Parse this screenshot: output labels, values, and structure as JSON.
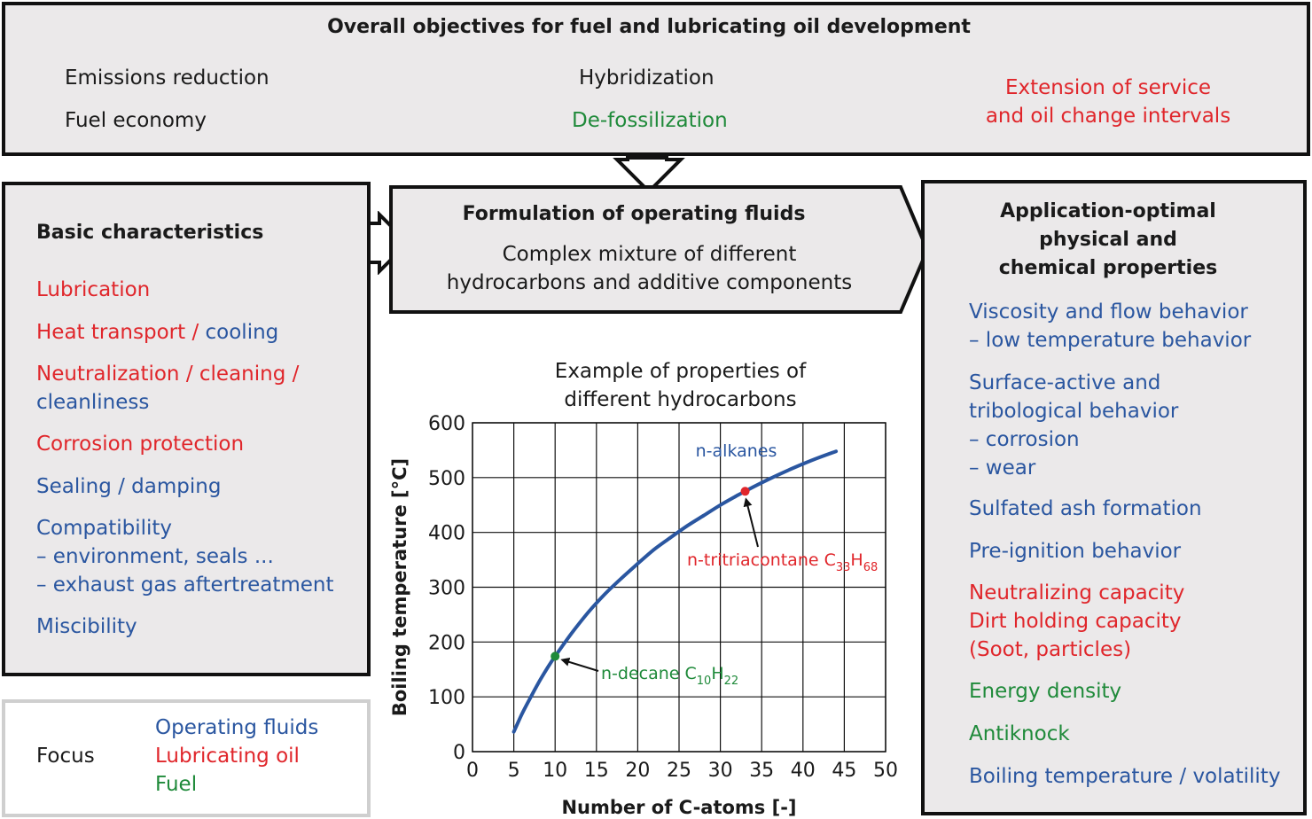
{
  "top": {
    "title": "Overall objectives for fuel and lubricating oil development",
    "items": {
      "emissions": "Emissions reduction",
      "fuel_economy": "Fuel economy",
      "hybridization": "Hybridization",
      "defossilization": "De-fossilization",
      "extension_line1": "Extension of service",
      "extension_line2": "and oil change intervals"
    }
  },
  "left": {
    "title": "Basic characteristics",
    "lubrication": "Lubrication",
    "heat_red": "Heat transport / ",
    "heat_blue": "cooling",
    "neutral_line1": "Neutralization / cleaning /",
    "neutral_line2": "cleanliness",
    "corrosion": "Corrosion protection",
    "sealing": "Sealing / damping",
    "compat_line1": "Compatibility",
    "compat_line2": "– environment, seals ...",
    "compat_line3": "– exhaust gas aftertreatment",
    "miscibility": "Miscibility"
  },
  "focus": {
    "label": "Focus",
    "operating_fluids": "Operating fluids",
    "lubricating_oil": "Lubricating oil",
    "fuel": "Fuel"
  },
  "center": {
    "title": "Formulation of operating fluids",
    "line1": "Complex mixture of different",
    "line2": "hydrocarbons and additive components"
  },
  "right": {
    "title_line1": "Application-optimal",
    "title_line2": "physical and",
    "title_line3": "chemical properties",
    "viscosity_line1": "Viscosity and flow behavior",
    "viscosity_line2": "– low temperature behavior",
    "surface_line1": "Surface-active and",
    "surface_line2": "tribological behavior",
    "surface_line3": "– corrosion",
    "surface_line4": "– wear",
    "sulfated": "Sulfated ash formation",
    "preignition": "Pre-ignition behavior",
    "neutralizing": "Neutralizing capacity",
    "dirt_line1": "Dirt holding capacity",
    "dirt_line2": "(Soot, particles)",
    "energy": "Energy density",
    "antiknock": "Antiknock",
    "boiling": "Boiling temperature / volatility"
  },
  "chart_data": {
    "type": "line",
    "title_line1": "Example of properties of",
    "title_line2": "different hydrocarbons",
    "xlabel": "Number of C-atoms [-]",
    "ylabel": "Boiling temperature [°C]",
    "xlim": [
      0,
      50
    ],
    "ylim": [
      0,
      600
    ],
    "xticks": [
      0,
      5,
      10,
      15,
      20,
      25,
      30,
      35,
      40,
      45,
      50
    ],
    "yticks": [
      0,
      100,
      200,
      300,
      400,
      500,
      600
    ],
    "grid": true,
    "series": [
      {
        "name": "n-alkanes",
        "color": "#2a56a0",
        "x": [
          5,
          6,
          7,
          8,
          9,
          10,
          12,
          14,
          16,
          18,
          20,
          22,
          24,
          26,
          28,
          30,
          32,
          33,
          34,
          36,
          38,
          40,
          42,
          44
        ],
        "y": [
          36,
          69,
          98,
          126,
          151,
          174,
          216,
          254,
          287,
          316,
          343,
          369,
          391,
          412,
          431,
          450,
          467,
          475,
          483,
          498,
          512,
          525,
          537,
          548
        ]
      }
    ],
    "annotations": [
      {
        "x": 10,
        "y": 174,
        "color": "#1f8a3a",
        "text": "n-decane C",
        "sub1": "10",
        "mid": "H",
        "sub2": "22"
      },
      {
        "x": 33,
        "y": 475,
        "color": "#e0262b",
        "text": "n-tritriacontane C",
        "sub1": "33",
        "mid": "H",
        "sub2": "68"
      }
    ]
  }
}
